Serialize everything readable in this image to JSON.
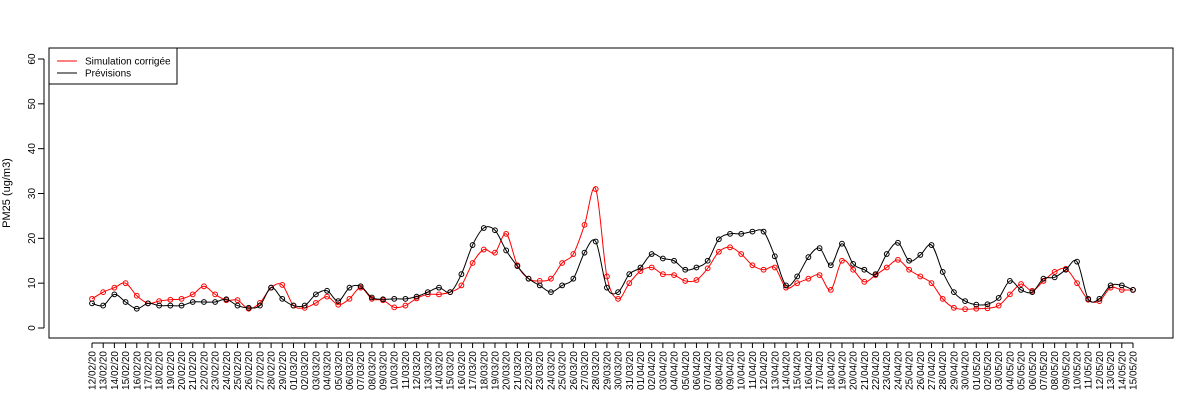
{
  "chart_data": {
    "type": "line",
    "ylabel": "PM25 (ug/m3)",
    "ylim": [
      0,
      60
    ],
    "yticks": [
      0,
      10,
      20,
      30,
      40,
      50,
      60
    ],
    "legend_position": "top-left",
    "categories": [
      "12/02/20",
      "13/02/20",
      "14/02/20",
      "15/02/20",
      "16/02/20",
      "17/02/20",
      "18/02/20",
      "19/02/20",
      "20/02/20",
      "21/02/20",
      "22/02/20",
      "23/02/20",
      "24/02/20",
      "25/02/20",
      "26/02/20",
      "27/02/20",
      "28/02/20",
      "29/02/20",
      "01/03/20",
      "02/03/20",
      "03/03/20",
      "04/03/20",
      "05/03/20",
      "06/03/20",
      "07/03/20",
      "08/03/20",
      "09/03/20",
      "10/03/20",
      "11/03/20",
      "12/03/20",
      "13/03/20",
      "14/03/20",
      "15/03/20",
      "16/03/20",
      "17/03/20",
      "18/03/20",
      "19/03/20",
      "20/03/20",
      "21/03/20",
      "22/03/20",
      "23/03/20",
      "24/03/20",
      "25/03/20",
      "26/03/20",
      "27/03/20",
      "28/03/20",
      "29/03/20",
      "30/03/20",
      "31/03/20",
      "01/04/20",
      "02/04/20",
      "03/04/20",
      "04/04/20",
      "05/04/20",
      "06/04/20",
      "07/04/20",
      "08/04/20",
      "09/04/20",
      "10/04/20",
      "11/04/20",
      "12/04/20",
      "13/04/20",
      "14/04/20",
      "15/04/20",
      "16/04/20",
      "17/04/20",
      "18/04/20",
      "19/04/20",
      "20/04/20",
      "21/04/20",
      "22/04/20",
      "23/04/20",
      "24/04/20",
      "25/04/20",
      "26/04/20",
      "27/04/20",
      "28/04/20",
      "29/04/20",
      "30/04/20",
      "01/05/20",
      "02/05/20",
      "03/05/20",
      "04/05/20",
      "05/05/20",
      "06/05/20",
      "07/05/20",
      "08/05/20",
      "09/05/20",
      "10/05/20",
      "11/05/20",
      "12/05/20",
      "13/05/20",
      "14/05/20",
      "15/05/20"
    ],
    "series": [
      {
        "name": "Simulation corrigée",
        "color": "#ff0000",
        "values": [
          6.5,
          8.0,
          9.0,
          10.0,
          7.2,
          5.5,
          6.0,
          6.3,
          6.5,
          7.5,
          9.3,
          7.5,
          6.2,
          6.2,
          4.3,
          5.6,
          9.0,
          9.6,
          5.0,
          4.5,
          5.6,
          7.0,
          5.2,
          6.5,
          9.0,
          6.5,
          6.2,
          4.6,
          5.0,
          6.6,
          7.5,
          7.5,
          8.0,
          9.5,
          14.5,
          17.5,
          16.8,
          21.0,
          14.0,
          11.0,
          10.5,
          11.0,
          14.5,
          16.5,
          23.0,
          31.0,
          11.5,
          6.5,
          10.0,
          12.7,
          13.5,
          12.0,
          11.8,
          10.5,
          10.7,
          13.3,
          17.0,
          18.0,
          16.5,
          14.0,
          13.0,
          13.5,
          9.0,
          10.0,
          11.0,
          11.8,
          8.5,
          15.0,
          13.0,
          10.3,
          11.8,
          13.5,
          15.2,
          13.0,
          11.5,
          10.0,
          6.5,
          4.5,
          4.2,
          4.3,
          4.4,
          5.0,
          7.5,
          9.8,
          8.3,
          10.5,
          12.5,
          13.2,
          10.0,
          6.3,
          6.0,
          9.0,
          8.5,
          8.5
        ]
      },
      {
        "name": "Prévisions",
        "color": "#000000",
        "values": [
          5.5,
          5.0,
          7.5,
          5.8,
          4.3,
          5.5,
          5.0,
          5.0,
          5.0,
          5.8,
          5.8,
          5.8,
          6.4,
          5.0,
          4.5,
          5.0,
          9.0,
          6.5,
          5.0,
          5.0,
          7.5,
          8.3,
          6.0,
          9.0,
          9.3,
          6.8,
          6.4,
          6.5,
          6.5,
          7.0,
          8.0,
          9.0,
          8.0,
          12.0,
          18.5,
          22.3,
          21.8,
          17.3,
          13.8,
          11.0,
          9.5,
          8.0,
          9.5,
          11.0,
          16.8,
          19.3,
          9.0,
          8.0,
          12.0,
          13.5,
          16.5,
          15.5,
          15.0,
          13.0,
          13.5,
          15.0,
          19.8,
          21.0,
          21.0,
          21.5,
          21.5,
          16.0,
          9.5,
          11.5,
          15.8,
          17.8,
          14.0,
          18.8,
          14.3,
          13.0,
          12.0,
          16.5,
          19.0,
          15.0,
          16.3,
          18.5,
          12.5,
          8.0,
          6.0,
          5.2,
          5.3,
          6.7,
          10.5,
          8.5,
          8.0,
          11.0,
          11.3,
          13.0,
          14.8,
          6.5,
          6.5,
          9.5,
          9.5,
          8.5
        ]
      }
    ]
  }
}
